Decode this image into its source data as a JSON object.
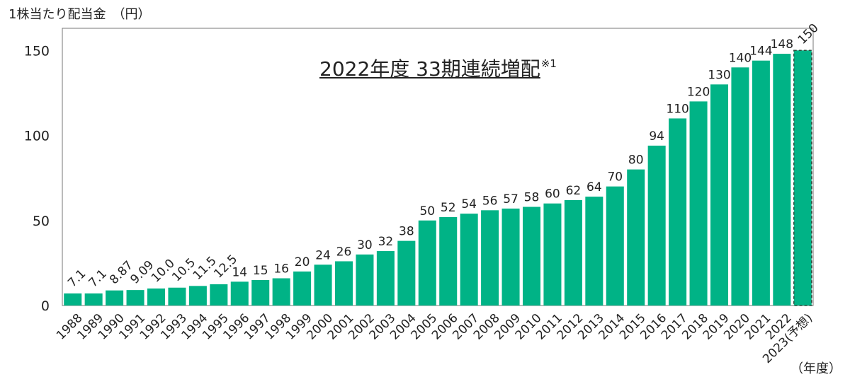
{
  "y_unit_label": "1株当たり配当金　（円）",
  "x_unit_label": "（年度）",
  "headline": {
    "text": "2022年度 33期連続増配",
    "note": "※1"
  },
  "colors": {
    "bar": "#00b386",
    "axis": "#444444",
    "plot_border": "#777777",
    "forecast_border": "#2b4d3d"
  },
  "chart_data": {
    "type": "bar",
    "title": "2022年度 33期連続増配",
    "categories": [
      "1988",
      "1989",
      "1990",
      "1991",
      "1992",
      "1993",
      "1994",
      "1995",
      "1996",
      "1997",
      "1998",
      "1999",
      "2000",
      "2001",
      "2002",
      "2003",
      "2004",
      "2005",
      "2006",
      "2007",
      "2008",
      "2009",
      "2010",
      "2011",
      "2012",
      "2013",
      "2014",
      "2015",
      "2016",
      "2017",
      "2018",
      "2019",
      "2020",
      "2021",
      "2022",
      "2023(予想)"
    ],
    "values": [
      7.1,
      7.1,
      8.87,
      9.09,
      10.0,
      10.5,
      11.5,
      12.5,
      14,
      15,
      16,
      20,
      24,
      26,
      30,
      32,
      38,
      50,
      52,
      54,
      56,
      57,
      58,
      60,
      62,
      64,
      70,
      80,
      94,
      110,
      120,
      130,
      140,
      144,
      148,
      150
    ],
    "value_labels": [
      "7.1",
      "7.1",
      "8.87",
      "9.09",
      "10.0",
      "10.5",
      "11.5",
      "12.5",
      "14",
      "15",
      "16",
      "20",
      "24",
      "26",
      "30",
      "32",
      "38",
      "50",
      "52",
      "54",
      "56",
      "57",
      "58",
      "60",
      "62",
      "64",
      "70",
      "80",
      "94",
      "110",
      "120",
      "130",
      "140",
      "144",
      "148",
      "150"
    ],
    "forecast_index": 35,
    "ylabel": "1株当たり配当金　（円）",
    "xlabel": "（年度）",
    "ylim": [
      0,
      163
    ],
    "yticks": [
      0,
      50,
      100,
      150
    ],
    "grid": false,
    "legend": "none"
  }
}
